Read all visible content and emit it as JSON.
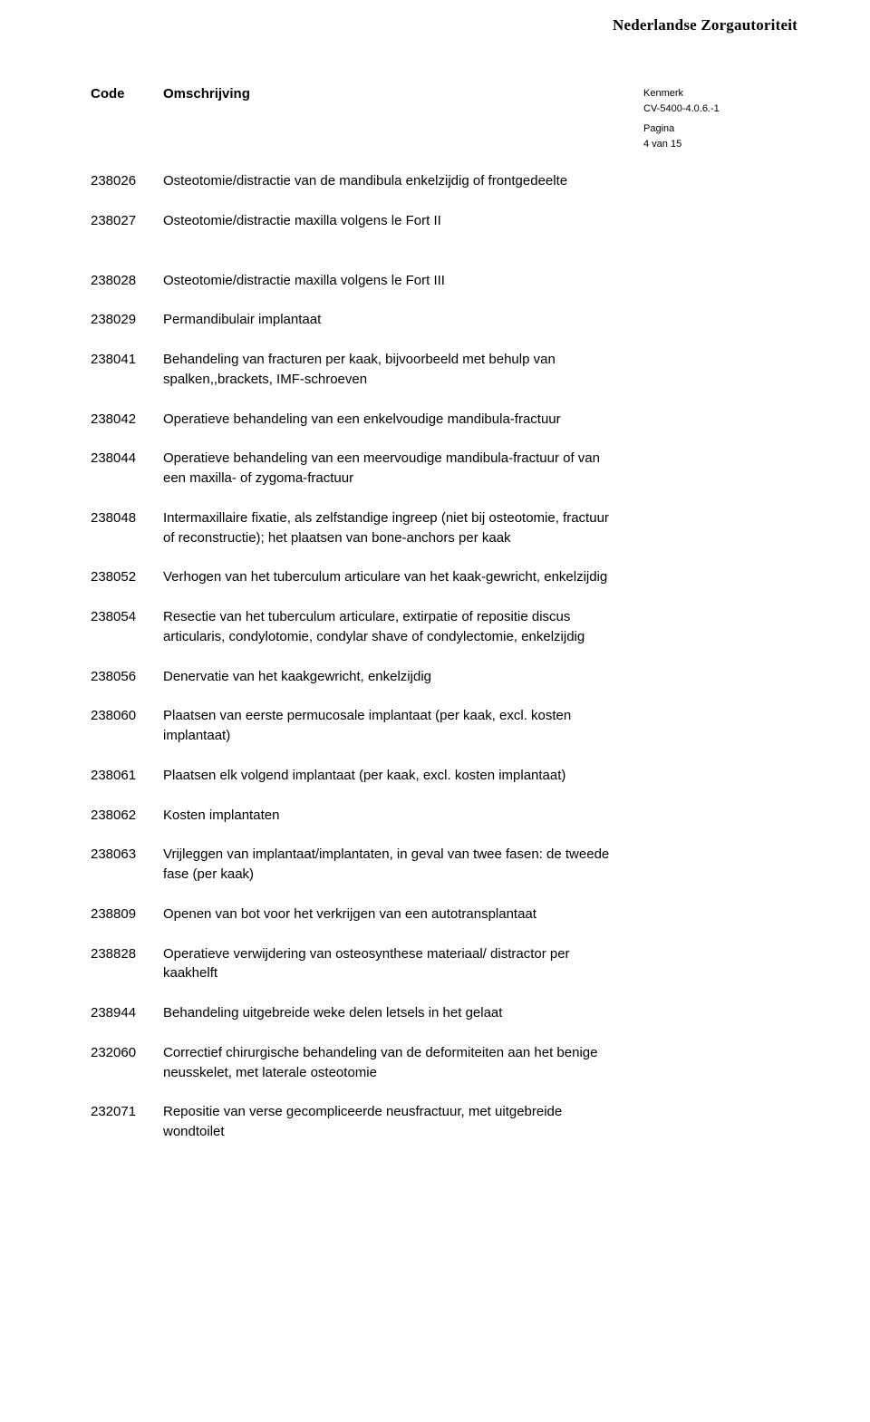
{
  "brand": "Nederlandse Zorgautoriteit",
  "header": {
    "code_label": "Code",
    "desc_label": "Omschrijving"
  },
  "meta": {
    "kenmerk_label": "Kenmerk",
    "kenmerk_value": "CV-5400-4.0.6.-1",
    "pagina_label": "Pagina",
    "pagina_value": "4 van 15"
  },
  "entries": [
    {
      "code": "238026",
      "desc": "Osteotomie/distractie van de mandibula enkelzijdig of frontgedeelte"
    },
    {
      "code": "238027",
      "desc": "Osteotomie/distractie maxilla volgens le Fort II"
    },
    {
      "gap": true
    },
    {
      "code": "238028",
      "desc": "Osteotomie/distractie maxilla volgens le Fort III"
    },
    {
      "code": "238029",
      "desc": "Permandibulair implantaat"
    },
    {
      "code": "238041",
      "desc": "Behandeling van fracturen per kaak, bijvoorbeeld met behulp van spalken,,brackets, IMF-schroeven"
    },
    {
      "code": "238042",
      "desc": "Operatieve behandeling van een enkelvoudige mandibula-fractuur"
    },
    {
      "code": "238044",
      "desc": "Operatieve behandeling van een meervoudige mandibula-fractuur of van een maxilla- of zygoma-fractuur"
    },
    {
      "code": "238048",
      "desc": "Intermaxillaire fixatie, als zelfstandige ingreep (niet bij osteotomie, fractuur of reconstructie); het plaatsen van bone-anchors per kaak"
    },
    {
      "code": "238052",
      "desc": "Verhogen van het tuberculum articulare van het kaak-gewricht, enkelzijdig"
    },
    {
      "code": "238054",
      "desc": "Resectie van het tuberculum articulare, extirpatie of repositie discus articularis, condylotomie, condylar shave of condylectomie, enkelzijdig"
    },
    {
      "code": "238056",
      "desc": "Denervatie van het kaakgewricht, enkelzijdig"
    },
    {
      "code": "238060",
      "desc": "Plaatsen van eerste permucosale implantaat (per kaak, excl. kosten implantaat)"
    },
    {
      "code": "238061",
      "desc": "Plaatsen elk volgend implantaat (per kaak, excl. kosten implantaat)"
    },
    {
      "code": "238062",
      "desc": "Kosten implantaten"
    },
    {
      "code": "238063",
      "desc": "Vrijleggen van implantaat/implantaten, in geval van twee fasen: de tweede fase (per kaak)"
    },
    {
      "code": "238809",
      "desc": "Openen van bot voor het verkrijgen van een autotransplantaat"
    },
    {
      "code": "238828",
      "desc": "Operatieve verwijdering van osteosynthese materiaal/ distractor per kaakhelft"
    },
    {
      "code": "238944",
      "desc": "Behandeling uitgebreide weke delen letsels in het gelaat"
    },
    {
      "code": "232060",
      "desc": "Correctief chirurgische behandeling van de deformiteiten aan het benige neusskelet, met laterale osteotomie"
    },
    {
      "code": "232071",
      "desc": "Repositie van verse gecompliceerde neusfractuur, met uitgebreide wondtoilet"
    }
  ]
}
